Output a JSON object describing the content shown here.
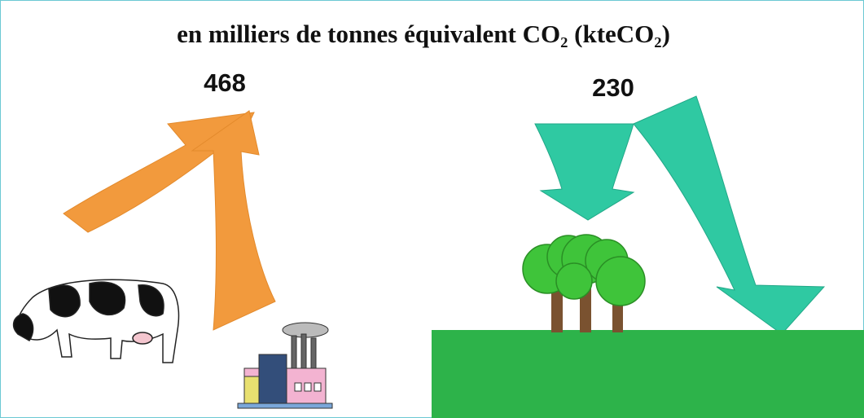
{
  "title": "en milliers de tonnes équivalent CO₂ (kteCO₂)",
  "emissions": {
    "value": 468
  },
  "absorption": {
    "value": 230
  }
}
